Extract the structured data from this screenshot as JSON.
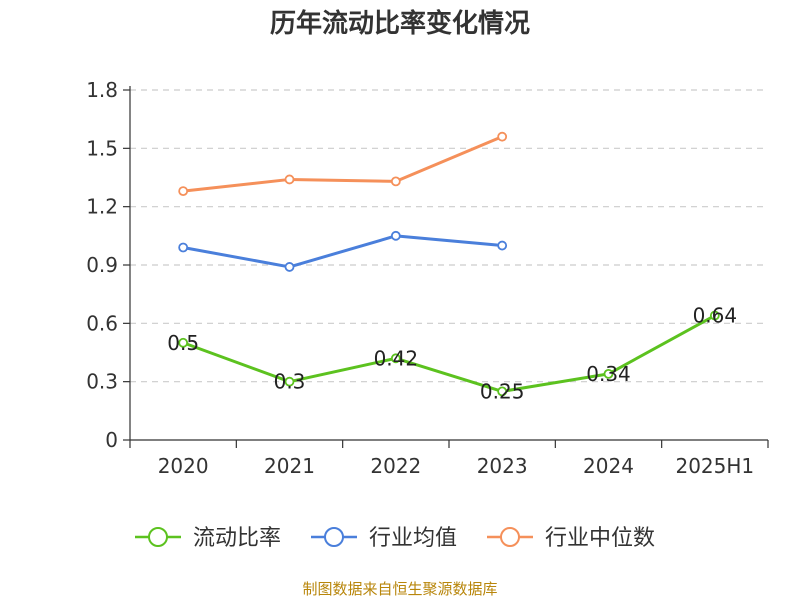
{
  "title": "历年流动比率变化情况",
  "source": "制图数据来自恒生聚源数据库",
  "chart_data": {
    "type": "line",
    "title": "历年流动比率变化情况",
    "categories": [
      "2020",
      "2021",
      "2022",
      "2023",
      "2024",
      "2025H1"
    ],
    "y_ticks": [
      "0",
      "0.3",
      "0.6",
      "0.9",
      "1.2",
      "1.5",
      "1.8"
    ],
    "ylim": [
      0,
      1.8
    ],
    "grid": true,
    "legend_position": "bottom",
    "series": [
      {
        "name": "流动比率",
        "color": "#5cc21f",
        "values": [
          0.5,
          0.3,
          0.42,
          0.25,
          0.34,
          0.64
        ],
        "labels": [
          "0.5",
          "0.3",
          "0.42",
          "0.25",
          "0.34",
          "0.64"
        ]
      },
      {
        "name": "行业均值",
        "color": "#4a7fdb",
        "values": [
          0.99,
          0.89,
          1.05,
          1.0,
          null,
          null
        ]
      },
      {
        "name": "行业中位数",
        "color": "#f5905a",
        "values": [
          1.28,
          1.34,
          1.33,
          1.56,
          null,
          null
        ]
      }
    ]
  }
}
